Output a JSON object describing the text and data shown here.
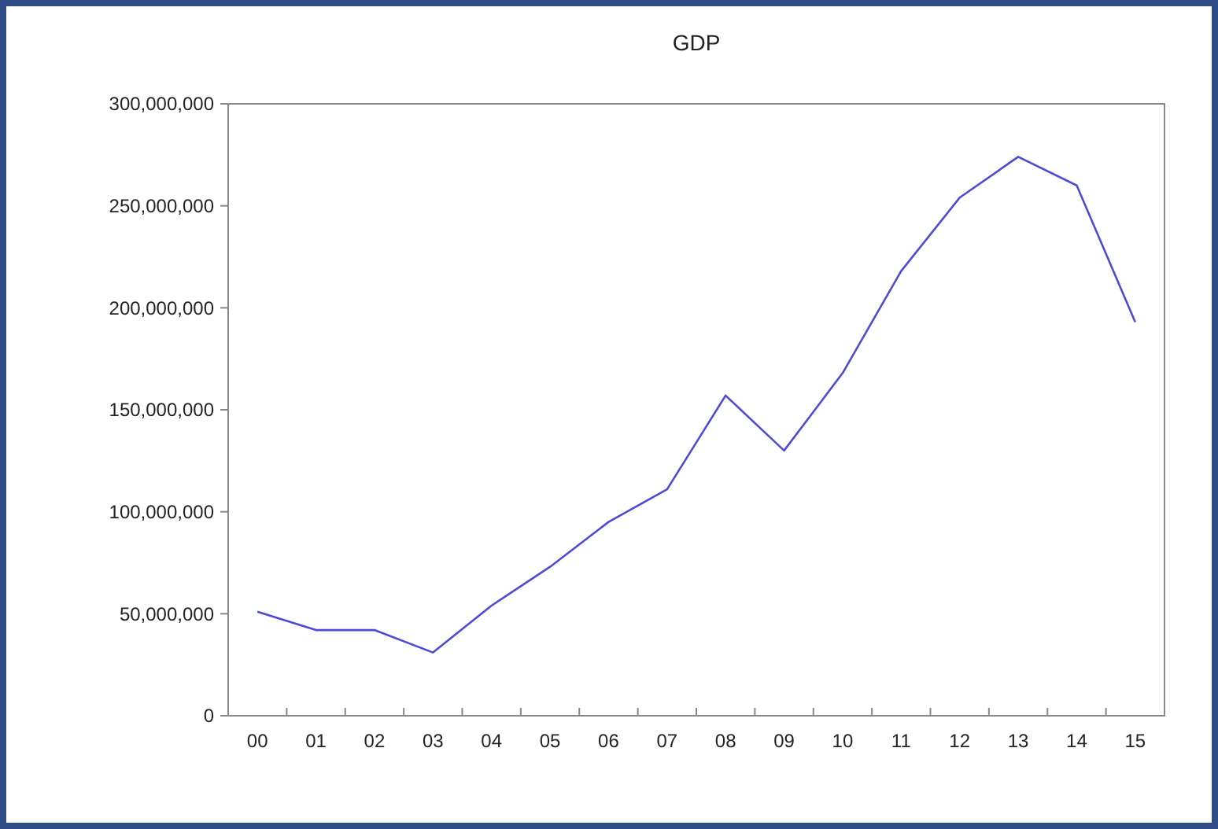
{
  "chart_data": {
    "type": "line",
    "title": "GDP",
    "categories": [
      "00",
      "01",
      "02",
      "03",
      "04",
      "05",
      "06",
      "07",
      "08",
      "09",
      "10",
      "11",
      "12",
      "13",
      "14",
      "15"
    ],
    "series": [
      {
        "color": "#4b4bd8",
        "values": [
          51000000,
          42000000,
          42000000,
          31000000,
          54000000,
          73000000,
          95000000,
          111000000,
          157000000,
          130000000,
          168000000,
          218000000,
          254000000,
          274000000,
          260000000,
          193000000
        ]
      }
    ],
    "ylim": [
      0,
      300000000
    ],
    "yticks": [
      {
        "value": 0,
        "label": "0"
      },
      {
        "value": 50000000,
        "label": "50,000,000"
      },
      {
        "value": 100000000,
        "label": "100,000,000"
      },
      {
        "value": 150000000,
        "label": "150,000,000"
      },
      {
        "value": 200000000,
        "label": "200,000,000"
      },
      {
        "value": 250000000,
        "label": "250,000,000"
      },
      {
        "value": 300000000,
        "label": "300,000,000"
      }
    ],
    "grid": false,
    "marker": "none",
    "line_style": "solid"
  }
}
